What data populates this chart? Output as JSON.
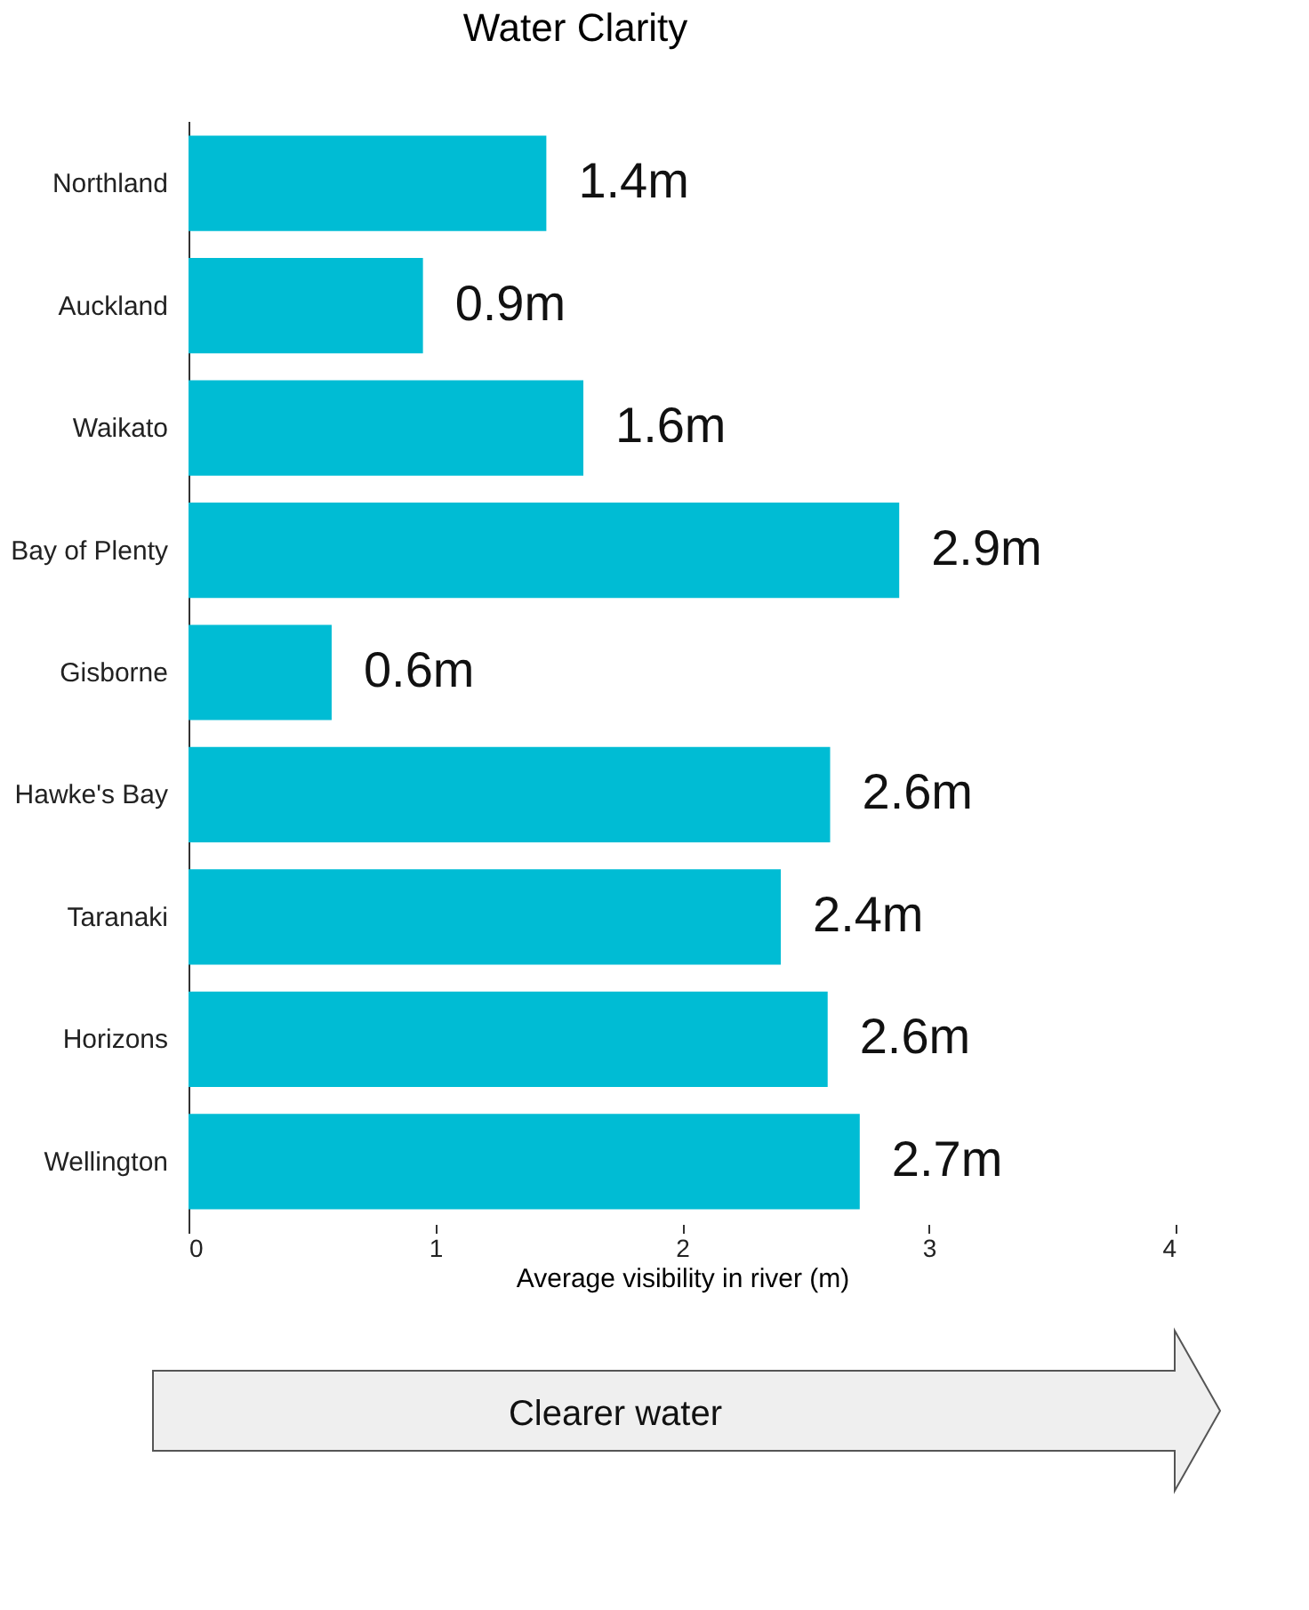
{
  "chart_data": {
    "type": "bar",
    "orientation": "horizontal",
    "title": "Water Clarity",
    "xlabel": "Average visibility in river (m)",
    "categories": [
      "Northland",
      "Auckland",
      "Waikato",
      "Bay of Plenty",
      "Gisborne",
      "Hawke's Bay",
      "Taranaki",
      "Horizons",
      "Wellington"
    ],
    "values": [
      1.45,
      0.95,
      1.6,
      2.88,
      0.58,
      2.6,
      2.4,
      2.59,
      2.72
    ],
    "value_labels": [
      "1.4m",
      "0.9m",
      "1.6m",
      "2.9m",
      "0.6m",
      "2.6m",
      "2.4m",
      "2.6m",
      "2.7m"
    ],
    "color": "#00bcd4",
    "xlim": [
      0,
      4
    ],
    "xticks": [
      0,
      1,
      2,
      3,
      4
    ],
    "grid": false,
    "annotations": [
      "Clearer water"
    ]
  }
}
